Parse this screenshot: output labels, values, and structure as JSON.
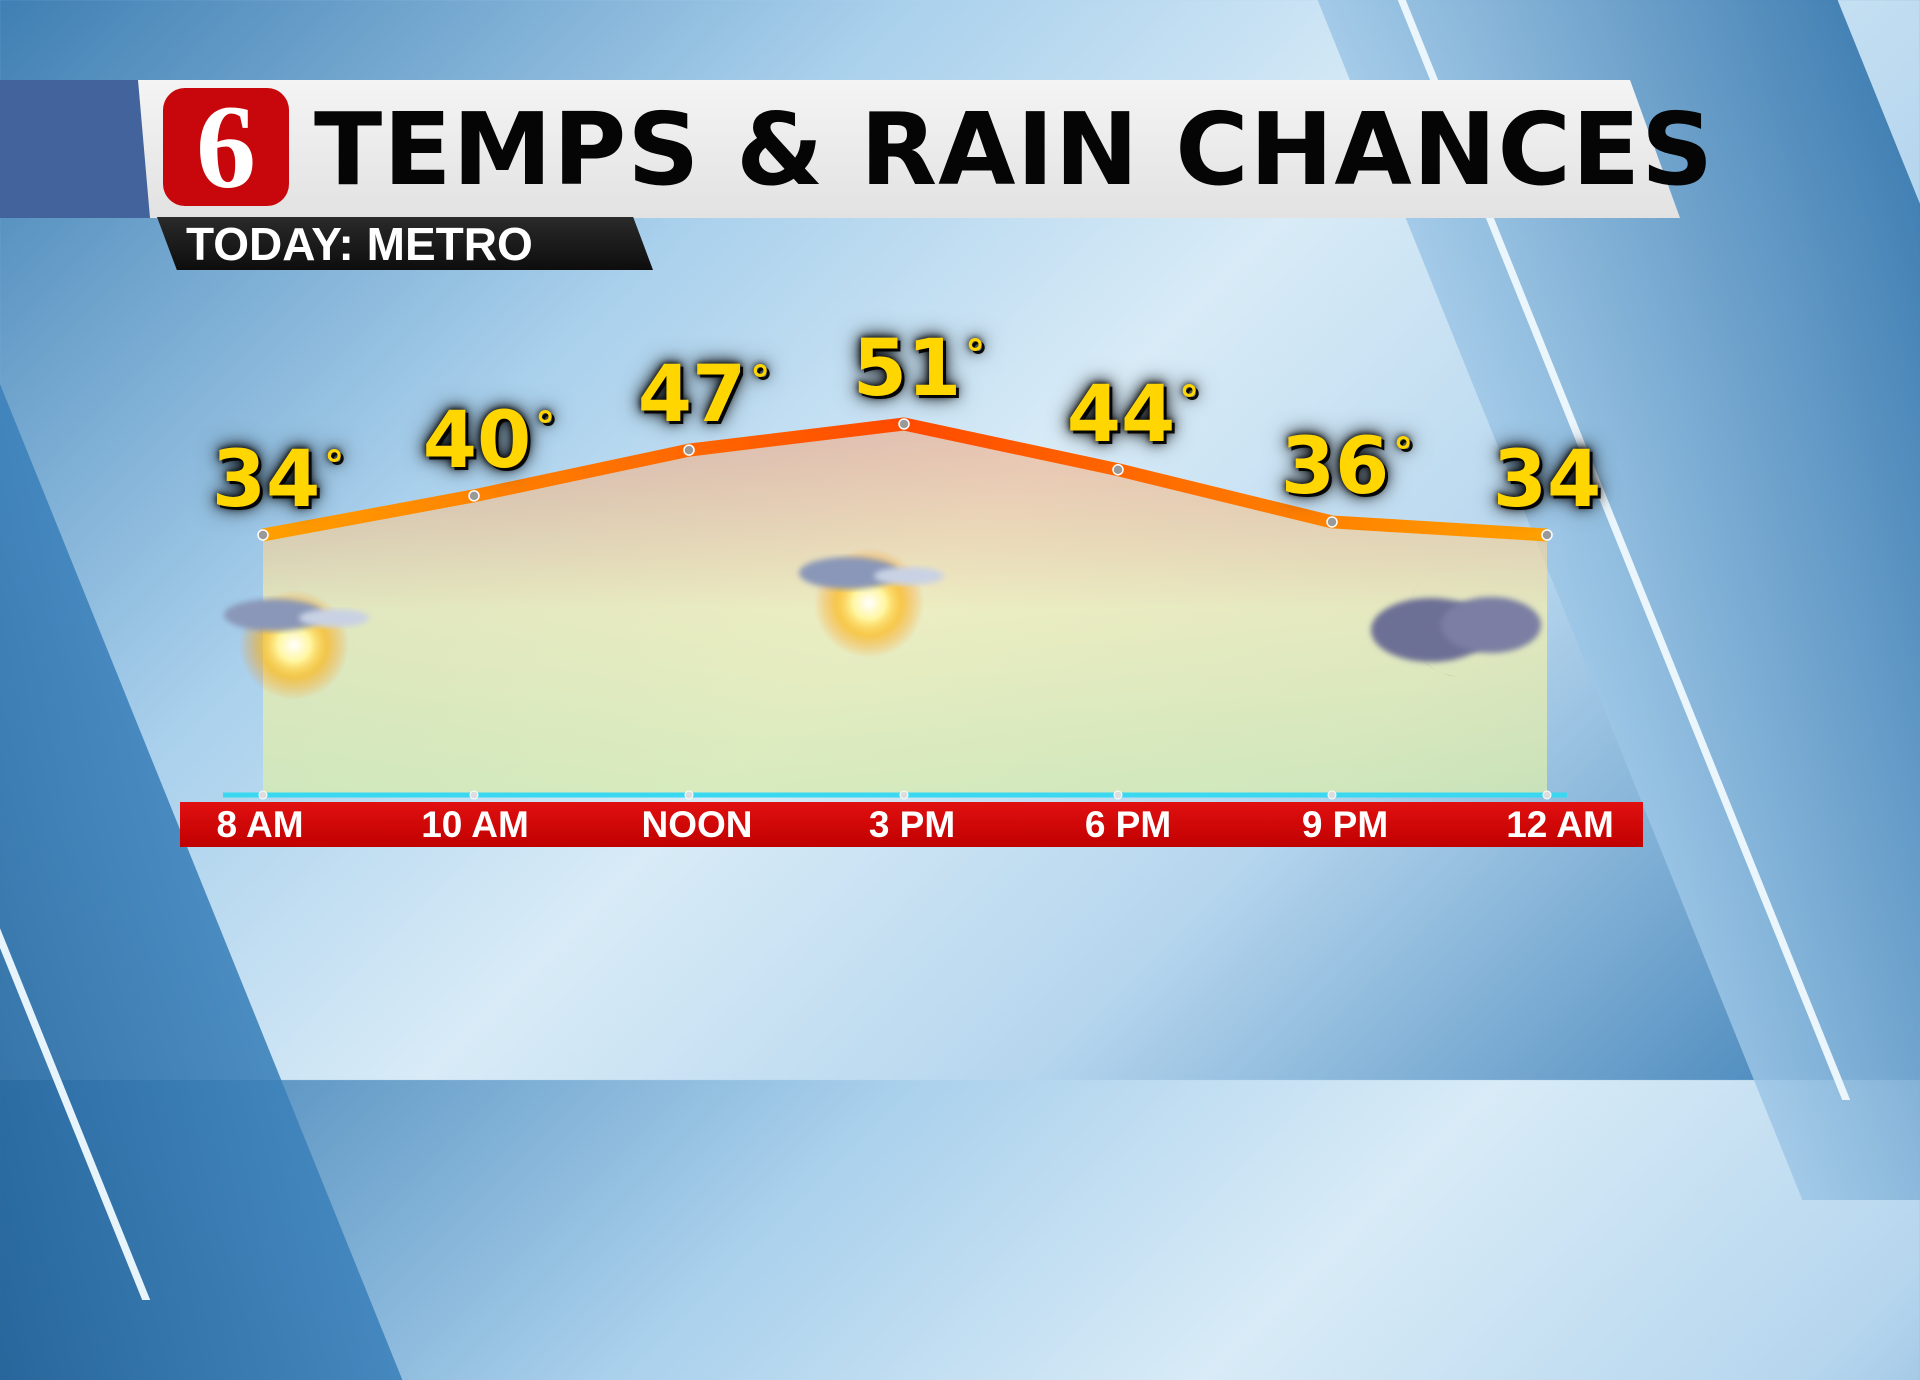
{
  "header": {
    "logo_text": "6",
    "title": "TEMPS & RAIN CHANCES",
    "subtitle": "TODAY: METRO"
  },
  "colors": {
    "line": "#ff7a00",
    "temp_text": "#ffd600",
    "time_bar": "#d40000",
    "baseline": "#3ad8f0"
  },
  "chart_data": {
    "type": "line",
    "title": "TEMPS & RAIN CHANCES",
    "categories": [
      "8 AM",
      "10 AM",
      "NOON",
      "3 PM",
      "6 PM",
      "9 PM",
      "12 AM"
    ],
    "values": [
      34,
      40,
      47,
      51,
      44,
      36,
      34
    ],
    "labels": [
      "34°",
      "40°",
      "47°",
      "51°",
      "44°",
      "36°",
      "34"
    ],
    "units": "°F",
    "icons": [
      {
        "time": "8 AM",
        "icon": "partly-sunny-icon"
      },
      {
        "time": "3 PM",
        "icon": "partly-sunny-icon"
      },
      {
        "time": "12 AM",
        "icon": "cloudy-night-moon-icon"
      }
    ],
    "grid": false,
    "legend": "none"
  }
}
